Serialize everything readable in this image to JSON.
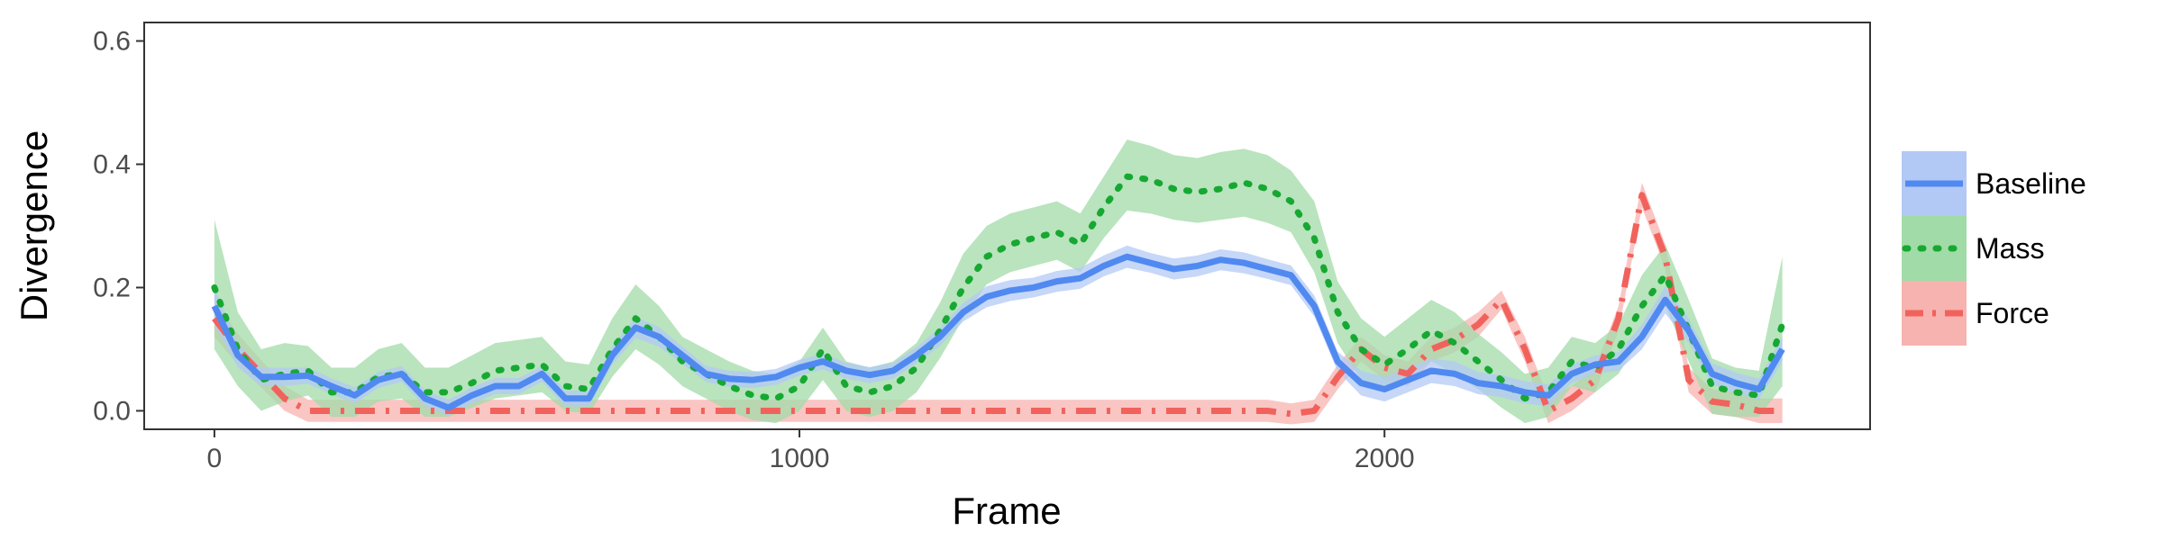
{
  "chart_data": {
    "type": "line",
    "xlabel": "Frame",
    "ylabel": "Divergence",
    "xlim": [
      -120,
      2830
    ],
    "ylim": [
      -0.03,
      0.63
    ],
    "xticks": [
      0,
      1000,
      2000
    ],
    "xtick_labels": [
      "0",
      "1000",
      "2000"
    ],
    "yticks": [
      0.0,
      0.2,
      0.4,
      0.6
    ],
    "ytick_labels": [
      "0.0",
      "0.2",
      "0.4",
      "0.6"
    ],
    "grid": false,
    "legend_position": "right",
    "x": [
      0,
      40,
      80,
      120,
      160,
      200,
      240,
      280,
      320,
      360,
      400,
      440,
      480,
      520,
      560,
      600,
      640,
      680,
      720,
      760,
      800,
      840,
      880,
      920,
      960,
      1000,
      1040,
      1080,
      1120,
      1160,
      1200,
      1240,
      1280,
      1320,
      1360,
      1400,
      1440,
      1480,
      1520,
      1560,
      1600,
      1640,
      1680,
      1720,
      1760,
      1800,
      1840,
      1880,
      1920,
      1960,
      2000,
      2040,
      2080,
      2120,
      2160,
      2200,
      2240,
      2280,
      2320,
      2360,
      2400,
      2440,
      2480,
      2520,
      2560,
      2600,
      2640,
      2680
    ],
    "series": [
      {
        "name": "Baseline",
        "color": "#5089f0",
        "band_color": "#b3c9f5",
        "dash": "solid",
        "values": [
          0.17,
          0.09,
          0.055,
          0.055,
          0.057,
          0.04,
          0.025,
          0.05,
          0.06,
          0.02,
          0.005,
          0.025,
          0.04,
          0.04,
          0.06,
          0.02,
          0.02,
          0.09,
          0.135,
          0.12,
          0.09,
          0.06,
          0.052,
          0.05,
          0.055,
          0.07,
          0.08,
          0.065,
          0.058,
          0.065,
          0.09,
          0.12,
          0.16,
          0.185,
          0.195,
          0.2,
          0.21,
          0.215,
          0.235,
          0.25,
          0.24,
          0.23,
          0.235,
          0.245,
          0.24,
          0.23,
          0.22,
          0.17,
          0.08,
          0.045,
          0.035,
          0.05,
          0.065,
          0.06,
          0.045,
          0.04,
          0.03,
          0.025,
          0.06,
          0.075,
          0.08,
          0.12,
          0.18,
          0.13,
          0.06,
          0.045,
          0.035,
          0.1
        ],
        "lower": [
          0.14,
          0.07,
          0.04,
          0.04,
          0.044,
          0.027,
          0.012,
          0.037,
          0.047,
          0.007,
          -0.008,
          0.012,
          0.027,
          0.027,
          0.047,
          0.007,
          0.007,
          0.075,
          0.118,
          0.104,
          0.076,
          0.047,
          0.039,
          0.037,
          0.042,
          0.057,
          0.067,
          0.052,
          0.045,
          0.052,
          0.077,
          0.105,
          0.145,
          0.168,
          0.178,
          0.184,
          0.193,
          0.198,
          0.218,
          0.232,
          0.224,
          0.213,
          0.218,
          0.228,
          0.223,
          0.214,
          0.204,
          0.153,
          0.064,
          0.025,
          0.015,
          0.03,
          0.045,
          0.04,
          0.027,
          0.022,
          0.012,
          0.007,
          0.045,
          0.06,
          0.065,
          0.1,
          0.158,
          0.11,
          0.043,
          0.028,
          0.018,
          0.08
        ],
        "upper": [
          0.2,
          0.11,
          0.07,
          0.07,
          0.07,
          0.053,
          0.038,
          0.063,
          0.073,
          0.033,
          0.018,
          0.038,
          0.053,
          0.053,
          0.073,
          0.033,
          0.033,
          0.105,
          0.152,
          0.136,
          0.104,
          0.073,
          0.065,
          0.063,
          0.068,
          0.083,
          0.093,
          0.078,
          0.071,
          0.078,
          0.103,
          0.135,
          0.175,
          0.202,
          0.212,
          0.216,
          0.227,
          0.232,
          0.252,
          0.268,
          0.256,
          0.247,
          0.252,
          0.262,
          0.257,
          0.246,
          0.236,
          0.187,
          0.096,
          0.065,
          0.055,
          0.07,
          0.085,
          0.08,
          0.063,
          0.058,
          0.048,
          0.043,
          0.075,
          0.09,
          0.095,
          0.14,
          0.202,
          0.15,
          0.077,
          0.062,
          0.052,
          0.12
        ]
      },
      {
        "name": "Mass",
        "color": "#17a832",
        "band_color": "#a1dba8",
        "dash": "dotted",
        "values": [
          0.2,
          0.1,
          0.05,
          0.06,
          0.065,
          0.03,
          0.03,
          0.055,
          0.06,
          0.03,
          0.03,
          0.045,
          0.065,
          0.07,
          0.075,
          0.04,
          0.035,
          0.1,
          0.15,
          0.12,
          0.08,
          0.06,
          0.04,
          0.025,
          0.02,
          0.04,
          0.1,
          0.04,
          0.03,
          0.04,
          0.07,
          0.13,
          0.2,
          0.25,
          0.27,
          0.28,
          0.29,
          0.27,
          0.33,
          0.38,
          0.375,
          0.36,
          0.355,
          0.36,
          0.37,
          0.36,
          0.34,
          0.28,
          0.16,
          0.1,
          0.075,
          0.1,
          0.13,
          0.11,
          0.08,
          0.05,
          0.02,
          0.03,
          0.08,
          0.07,
          0.1,
          0.17,
          0.22,
          0.13,
          0.04,
          0.03,
          0.025,
          0.14
        ],
        "lower": [
          0.1,
          0.04,
          0.0,
          0.015,
          0.025,
          -0.01,
          -0.01,
          0.015,
          0.02,
          -0.01,
          -0.01,
          0.005,
          0.02,
          0.025,
          0.03,
          0.0,
          -0.005,
          0.055,
          0.1,
          0.075,
          0.04,
          0.02,
          0.0,
          -0.015,
          -0.02,
          0.0,
          0.05,
          0.0,
          -0.01,
          0.0,
          0.03,
          0.085,
          0.15,
          0.205,
          0.225,
          0.235,
          0.245,
          0.225,
          0.28,
          0.325,
          0.32,
          0.31,
          0.305,
          0.31,
          0.315,
          0.305,
          0.29,
          0.225,
          0.11,
          0.05,
          0.03,
          0.055,
          0.08,
          0.06,
          0.035,
          0.005,
          -0.02,
          -0.01,
          0.04,
          0.03,
          0.06,
          0.12,
          0.17,
          0.08,
          -0.005,
          -0.01,
          -0.01,
          0.04
        ],
        "upper": [
          0.31,
          0.16,
          0.1,
          0.11,
          0.105,
          0.07,
          0.07,
          0.1,
          0.11,
          0.07,
          0.07,
          0.09,
          0.11,
          0.115,
          0.12,
          0.08,
          0.075,
          0.15,
          0.205,
          0.17,
          0.12,
          0.1,
          0.08,
          0.065,
          0.06,
          0.08,
          0.135,
          0.08,
          0.07,
          0.08,
          0.11,
          0.175,
          0.255,
          0.3,
          0.32,
          0.33,
          0.34,
          0.32,
          0.38,
          0.44,
          0.43,
          0.415,
          0.41,
          0.42,
          0.425,
          0.415,
          0.39,
          0.34,
          0.21,
          0.15,
          0.12,
          0.15,
          0.18,
          0.16,
          0.125,
          0.095,
          0.06,
          0.07,
          0.12,
          0.11,
          0.14,
          0.22,
          0.27,
          0.18,
          0.085,
          0.07,
          0.065,
          0.25
        ]
      },
      {
        "name": "Force",
        "color": "#f1625c",
        "band_color": "#f7b3b0",
        "dash": "dotdash",
        "values": [
          0.15,
          0.1,
          0.06,
          0.02,
          0.0,
          0.0,
          0.0,
          0.0,
          0.0,
          0.0,
          0.0,
          0.0,
          0.0,
          0.0,
          0.0,
          0.0,
          0.0,
          0.0,
          0.0,
          0.0,
          0.0,
          0.0,
          0.0,
          0.0,
          0.0,
          0.0,
          0.0,
          0.0,
          0.0,
          0.0,
          0.0,
          0.0,
          0.0,
          0.0,
          0.0,
          0.0,
          0.0,
          0.0,
          0.0,
          0.0,
          0.0,
          0.0,
          0.0,
          0.0,
          0.0,
          0.0,
          -0.005,
          0.0,
          0.055,
          0.1,
          0.07,
          0.06,
          0.1,
          0.115,
          0.14,
          0.18,
          0.1,
          0.0,
          0.02,
          0.05,
          0.15,
          0.35,
          0.25,
          0.05,
          0.015,
          0.01,
          0.0,
          0.0
        ],
        "lower": [
          0.12,
          0.075,
          0.038,
          0.0,
          -0.018,
          -0.018,
          -0.018,
          -0.018,
          -0.018,
          -0.018,
          -0.018,
          -0.018,
          -0.018,
          -0.018,
          -0.018,
          -0.018,
          -0.018,
          -0.018,
          -0.018,
          -0.018,
          -0.018,
          -0.018,
          -0.018,
          -0.018,
          -0.018,
          -0.018,
          -0.018,
          -0.018,
          -0.018,
          -0.018,
          -0.018,
          -0.018,
          -0.018,
          -0.018,
          -0.018,
          -0.018,
          -0.018,
          -0.018,
          -0.018,
          -0.018,
          -0.018,
          -0.018,
          -0.018,
          -0.018,
          -0.018,
          -0.018,
          -0.022,
          -0.018,
          0.035,
          0.08,
          0.05,
          0.04,
          0.08,
          0.095,
          0.12,
          0.165,
          0.08,
          -0.02,
          0.0,
          0.03,
          0.13,
          0.33,
          0.23,
          0.03,
          -0.005,
          -0.01,
          -0.02,
          -0.02
        ],
        "upper": [
          0.18,
          0.125,
          0.082,
          0.04,
          0.018,
          0.018,
          0.018,
          0.018,
          0.018,
          0.018,
          0.018,
          0.018,
          0.018,
          0.018,
          0.018,
          0.018,
          0.018,
          0.018,
          0.018,
          0.018,
          0.018,
          0.018,
          0.018,
          0.018,
          0.018,
          0.018,
          0.018,
          0.018,
          0.018,
          0.018,
          0.018,
          0.018,
          0.018,
          0.018,
          0.018,
          0.018,
          0.018,
          0.018,
          0.018,
          0.018,
          0.018,
          0.018,
          0.018,
          0.018,
          0.018,
          0.018,
          0.012,
          0.018,
          0.075,
          0.12,
          0.09,
          0.08,
          0.12,
          0.135,
          0.16,
          0.195,
          0.12,
          0.02,
          0.04,
          0.07,
          0.17,
          0.37,
          0.27,
          0.07,
          0.035,
          0.03,
          0.02,
          0.02
        ]
      }
    ]
  }
}
